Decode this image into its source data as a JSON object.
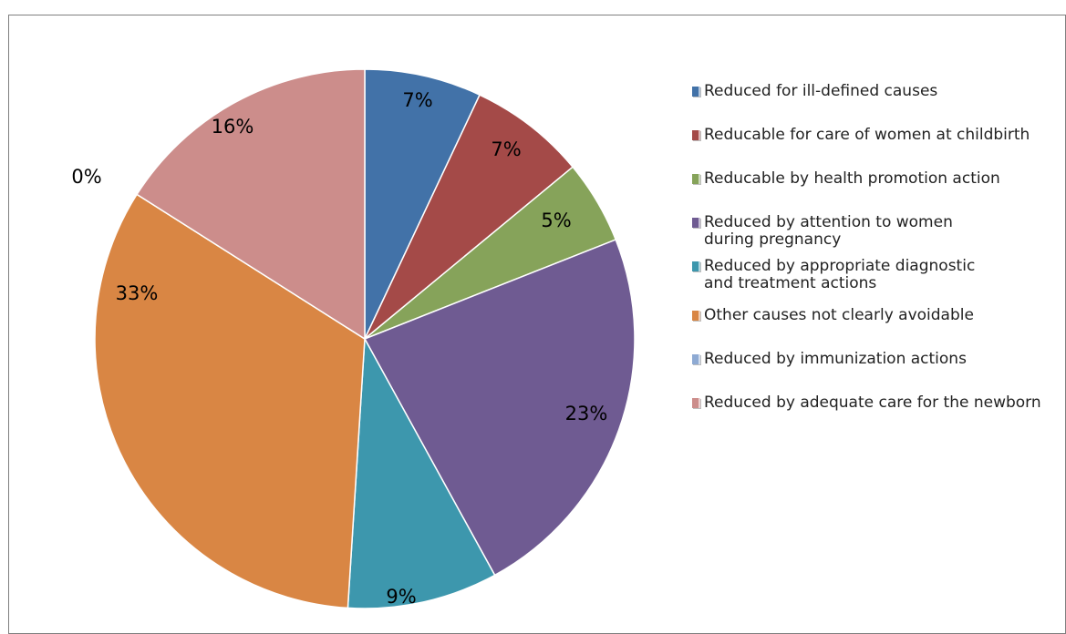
{
  "chart_data": {
    "type": "pie",
    "title": "",
    "data_labels": [
      "7%",
      "7%",
      "5%",
      "23%",
      "9%",
      "33%",
      "0%",
      "16%"
    ],
    "slices": [
      {
        "name": "Reduced for ill-defined causes",
        "value": 7,
        "color": "#4272a8"
      },
      {
        "name": "Reducable for care of women at childbirth",
        "value": 7,
        "color": "#a44a48"
      },
      {
        "name": "Reducable by health promotion action",
        "value": 5,
        "color": "#86a35a"
      },
      {
        "name": "Reduced by attention to women\nduring pregnancy",
        "value": 23,
        "color": "#6f5b92"
      },
      {
        "name": "Reduced by appropriate diagnostic\nand treatment actions",
        "value": 9,
        "color": "#3d97ad"
      },
      {
        "name": "Other causes not clearly avoidable",
        "value": 33,
        "color": "#d98644"
      },
      {
        "name": "Reduced by immunization actions",
        "value": 0,
        "color": "#8eaad3"
      },
      {
        "name": "Reduced by adequate care for the newborn",
        "value": 16,
        "color": "#cc8d8b"
      }
    ],
    "legend_position": "right"
  }
}
